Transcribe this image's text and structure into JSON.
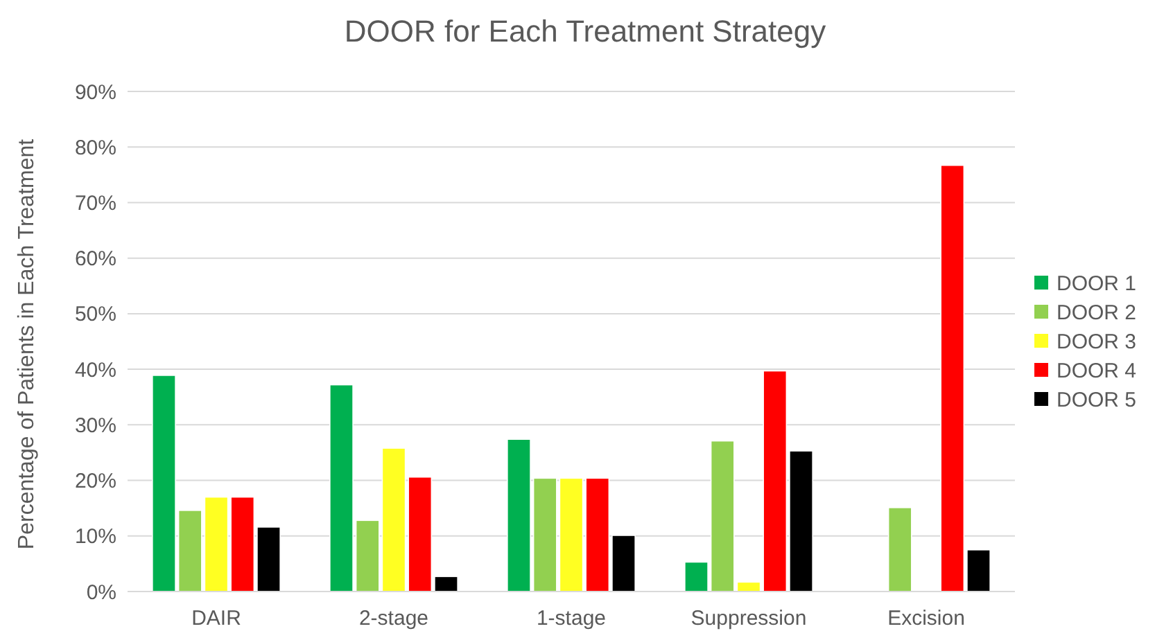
{
  "chart_data": {
    "type": "bar",
    "title": "DOOR for Each Treatment Strategy",
    "ylabel": "Percentage of Patients in Each Treatment",
    "categories": [
      "DAIR",
      "2-stage",
      "1-stage",
      "Suppression",
      "Excision"
    ],
    "series": [
      {
        "name": "DOOR 1",
        "color": "#00b050",
        "values": [
          38.9,
          37.2,
          27.4,
          5.3,
          0
        ]
      },
      {
        "name": "DOOR 2",
        "color": "#92d050",
        "values": [
          14.6,
          12.8,
          20.4,
          27.1,
          15.1
        ]
      },
      {
        "name": "DOOR 3",
        "color": "#ffff22",
        "values": [
          17,
          25.8,
          20.4,
          1.7,
          0
        ]
      },
      {
        "name": "DOOR 4",
        "color": "#ff0000",
        "values": [
          17,
          20.6,
          20.4,
          39.7,
          76.7
        ]
      },
      {
        "name": "DOOR 5",
        "color": "#000000",
        "values": [
          11.6,
          2.7,
          10.1,
          25.3,
          7.5
        ]
      }
    ],
    "ylim": [
      0,
      90
    ],
    "yticks": [
      {
        "value": 0,
        "label": "0%"
      },
      {
        "value": 10,
        "label": "10%"
      },
      {
        "value": 20,
        "label": "20%"
      },
      {
        "value": 30,
        "label": "30%"
      },
      {
        "value": 40,
        "label": "40%"
      },
      {
        "value": 50,
        "label": "50%"
      },
      {
        "value": 60,
        "label": "60%"
      },
      {
        "value": 70,
        "label": "70%"
      },
      {
        "value": 80,
        "label": "80%"
      },
      {
        "value": 90,
        "label": "90%"
      }
    ],
    "grid": "y",
    "legend": "right"
  }
}
